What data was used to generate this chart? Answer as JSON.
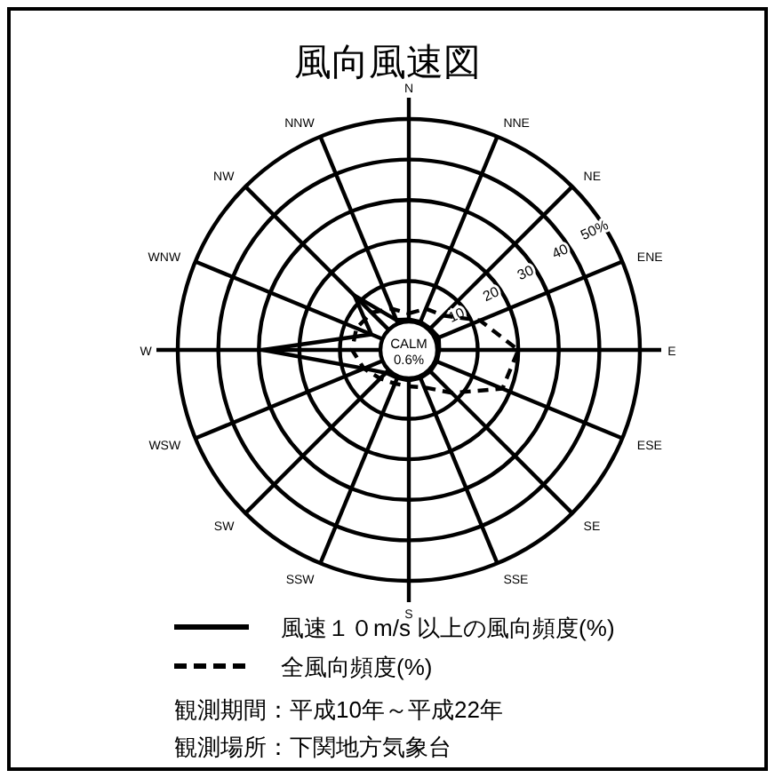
{
  "chart_data": {
    "type": "radar",
    "title": "風向風速図",
    "categories": [
      "N",
      "NNE",
      "NE",
      "ENE",
      "E",
      "ESE",
      "SE",
      "SSE",
      "S",
      "SSW",
      "SW",
      "WSW",
      "W",
      "WNW",
      "NW",
      "NNW"
    ],
    "series": [
      {
        "name": "風速１０m/s 以上の風向頻度(%)",
        "color": "#000000",
        "line_style": "solid",
        "values": [
          0.5,
          0.5,
          0.5,
          1,
          0.5,
          0.5,
          0.5,
          0.5,
          0.5,
          0.5,
          1,
          5,
          29,
          3,
          12,
          1
        ]
      },
      {
        "name": "全風向頻度(%)",
        "color": "#000000",
        "line_style": "dashed",
        "values": [
          2,
          4,
          5,
          12,
          20,
          18,
          8,
          3,
          2,
          2,
          3,
          5,
          7,
          7,
          6,
          4
        ]
      }
    ],
    "ylim": [
      -7,
      50
    ],
    "yticks": [
      10,
      20,
      30,
      40,
      {
        "value": 50,
        "label": "50%"
      }
    ],
    "grid": true,
    "legend": "bottom",
    "annotations": [
      "CALM",
      "0.6%",
      "観測期間：平成10年～平成22年",
      "観測場所：下関地方気象台"
    ]
  }
}
